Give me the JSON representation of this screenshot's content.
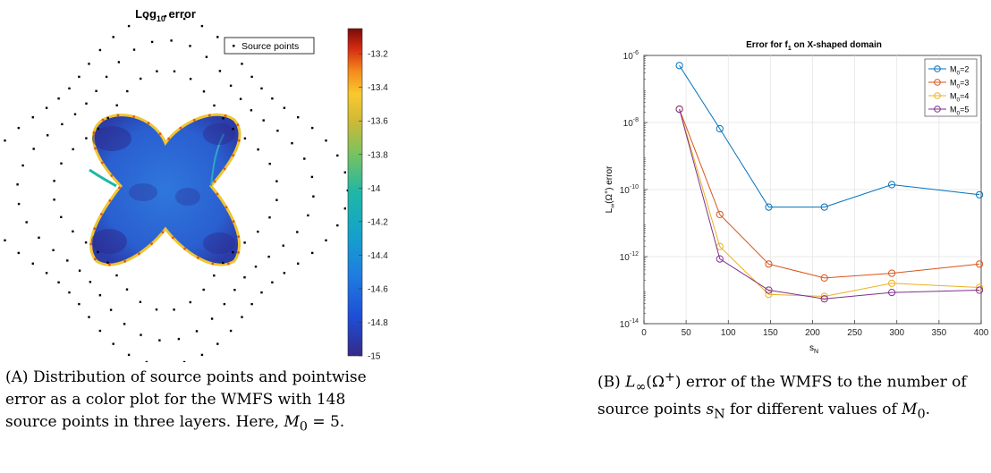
{
  "chart_data": [
    {
      "type": "heatmap",
      "title": "Log",
      "title_sub": "10",
      "title_suffix": " error",
      "legend": {
        "label": "Source points",
        "placement": "top-right"
      },
      "colorbar": {
        "range": [
          -15,
          -13.05
        ],
        "ticks": [
          "-13.2",
          "-13.4",
          "-13.6",
          "-13.8",
          "-14",
          "-14.2",
          "-14.4",
          "-14.6",
          "-14.8",
          "-15"
        ],
        "tick_values": [
          -13.2,
          -13.4,
          -13.6,
          -13.8,
          -14,
          -14.2,
          -14.4,
          -14.6,
          -14.8,
          -15
        ],
        "colormap": "parula"
      },
      "source_point_count": 148,
      "layers": 3,
      "colors": {
        "field": "#2b64d6",
        "field_dark": "#2c2b8f",
        "edge": "#f2c02c",
        "marker": "#000000"
      }
    },
    {
      "type": "line",
      "title": "Error for f",
      "title_sub": "1",
      "title_suffix": " on X-shaped domain",
      "xlabel": "s",
      "xlabel_sub": "N",
      "ylabel": "L",
      "ylabel_sub": "∞",
      "ylabel_rest": "(Ω",
      "ylabel_sup": "+",
      "ylabel_end": ") error",
      "yscale": "log",
      "xlim": [
        0,
        400
      ],
      "ylim": [
        1e-14,
        1e-06
      ],
      "grid": true,
      "legend_placement": "top-right",
      "x_ticks": [
        "0",
        "50",
        "100",
        "150",
        "200",
        "250",
        "300",
        "350",
        "400"
      ],
      "x_tick_values": [
        0,
        50,
        100,
        150,
        200,
        250,
        300,
        350,
        400
      ],
      "y_ticks": [
        {
          "value": 1e-14,
          "base": "10",
          "exp": "-14"
        },
        {
          "value": 1e-12,
          "base": "10",
          "exp": "-12"
        },
        {
          "value": 1e-10,
          "base": "10",
          "exp": "-10"
        },
        {
          "value": 1e-08,
          "base": "10",
          "exp": "-8"
        },
        {
          "value": 1e-06,
          "base": "10",
          "exp": "-6"
        }
      ],
      "x": [
        42,
        90,
        148,
        214,
        294,
        398
      ],
      "series": [
        {
          "name_base": "M",
          "name_sub": "0",
          "name_rest": "=2",
          "color": "#0072bd",
          "values": [
            5e-07,
            6.5e-09,
            3e-11,
            3e-11,
            1.4e-10,
            7e-11
          ]
        },
        {
          "name_base": "M",
          "name_sub": "0",
          "name_rest": "=3",
          "color": "#d95319",
          "values": [
            2.5e-08,
            1.8e-11,
            6e-13,
            2.3e-13,
            3.2e-13,
            6e-13
          ]
        },
        {
          "name_base": "M",
          "name_sub": "0",
          "name_rest": "=4",
          "color": "#edb120",
          "values": [
            2.5e-08,
            2e-12,
            7.5e-14,
            6.5e-14,
            1.6e-13,
            1.2e-13
          ]
        },
        {
          "name_base": "M",
          "name_sub": "0",
          "name_rest": "=5",
          "color": "#7e2f8e",
          "values": [
            2.5e-08,
            8.5e-13,
            1e-13,
            5.5e-14,
            8.5e-14,
            1e-13
          ]
        }
      ]
    }
  ],
  "captions": {
    "a": {
      "label": "(A)",
      "text_1": "Distribution of source points and pointwise error as a color plot for the WMFS with 148 source points in three layers. Here, ",
      "math": "M",
      "math_sub": "0",
      "text_2": " = 5."
    },
    "b": {
      "label": "(B)",
      "math_1": "L",
      "math_1_sub": "∞",
      "math_1_rest": "(Ω",
      "math_1_sup": "+",
      "math_1_end": ")",
      "text_1": " error of the WMFS to the number of source points ",
      "math_2": "s",
      "math_2_sub": "N",
      "text_2": " for different values of ",
      "math_3": "M",
      "math_3_sub": "0",
      "text_3": "."
    }
  }
}
